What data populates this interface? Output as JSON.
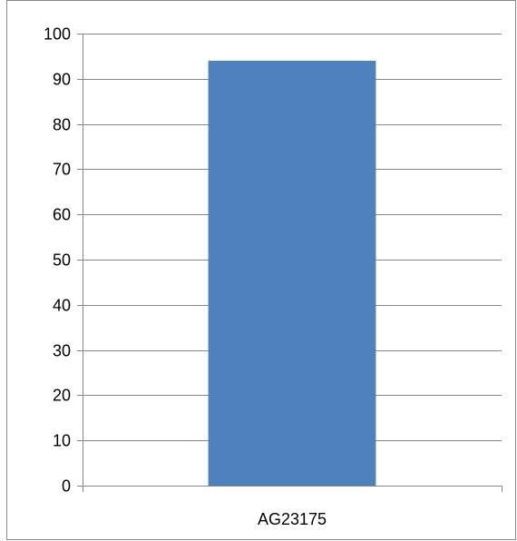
{
  "chart_data": {
    "type": "bar",
    "categories": [
      "AG23175"
    ],
    "values": [
      94
    ],
    "title": "",
    "xlabel": "",
    "ylabel": "",
    "ylim": [
      0,
      100
    ],
    "yticks": [
      0,
      10,
      20,
      30,
      40,
      50,
      60,
      70,
      80,
      90,
      100
    ],
    "grid": true,
    "legend": "none",
    "bar_color": "#4F81BD",
    "grid_color": "#868686"
  }
}
